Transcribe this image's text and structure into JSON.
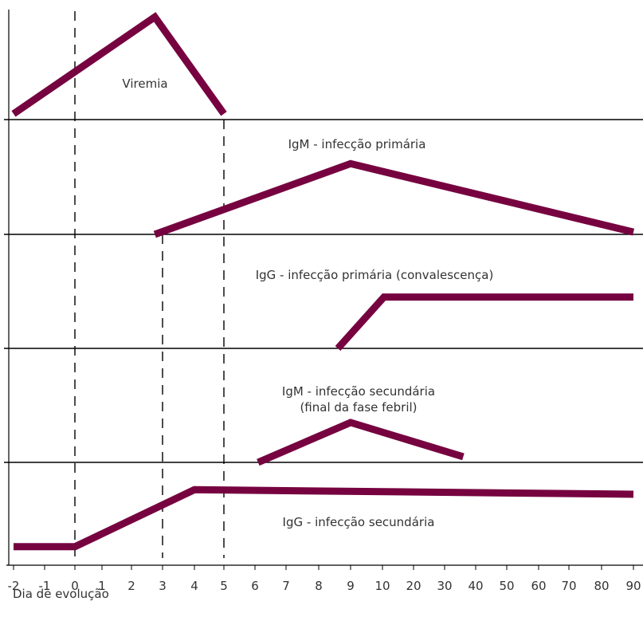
{
  "chart_data": {
    "type": "line",
    "xlabel": "Dia de evolução",
    "x_ticks": [
      "-2",
      "-1",
      "0",
      "1",
      "2",
      "3",
      "4",
      "5",
      "6",
      "7",
      "8",
      "9",
      "10",
      "20",
      "30",
      "40",
      "50",
      "60",
      "70",
      "80",
      "90"
    ],
    "dashed_reference_days": [
      "0",
      "3",
      "5"
    ],
    "line_color": "#760340",
    "panels": [
      {
        "name": "Viremia",
        "label_lines": [
          "Viremia"
        ],
        "points": [
          [
            "-2",
            0.05
          ],
          [
            "2.75",
            0.9
          ],
          [
            "5",
            0.05
          ]
        ]
      },
      {
        "name": "IgM - infecção primária",
        "label_lines": [
          "IgM - infecção primária"
        ],
        "points": [
          [
            "2.75",
            0.0
          ],
          [
            "9",
            0.62
          ],
          [
            "90",
            0.02
          ]
        ]
      },
      {
        "name": "IgG - infecção primária (convalescença)",
        "label_lines": [
          "IgG - infecção primária (convalescença)"
        ],
        "points": [
          [
            "8.6",
            0.0
          ],
          [
            "10.5",
            0.45
          ],
          [
            "90",
            0.45
          ]
        ]
      },
      {
        "name": "IgM - infecção secundária (final da fase febril)",
        "label_lines": [
          "IgM - infecção secundária",
          "(final da fase febril)"
        ],
        "points": [
          [
            "6.1",
            0.0
          ],
          [
            "9",
            0.35
          ],
          [
            "36",
            0.05
          ]
        ]
      },
      {
        "name": "IgG - infecção secundária",
        "label_lines": [
          "IgG - infecção secundária"
        ],
        "points": [
          [
            "-2",
            -0.74
          ],
          [
            "0",
            -0.74
          ],
          [
            "4",
            -0.24
          ],
          [
            "90",
            -0.28
          ]
        ]
      }
    ]
  }
}
